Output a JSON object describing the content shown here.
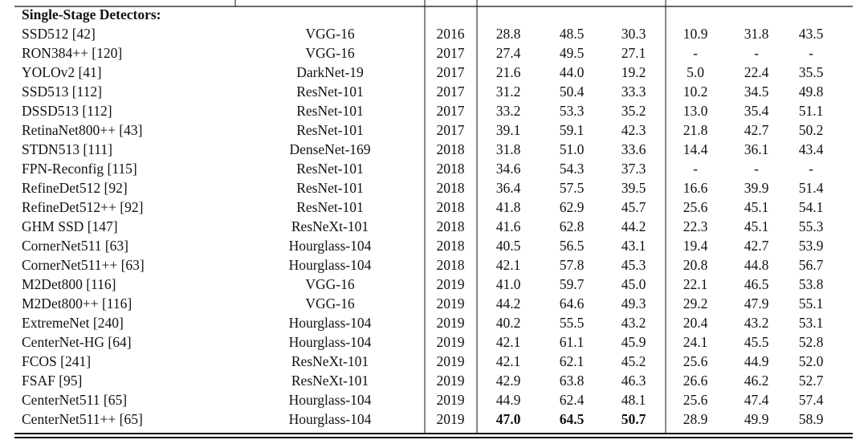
{
  "table": {
    "section": "Single-Stage Detectors:",
    "rows": [
      [
        "SSD512 [42]",
        "VGG-16",
        "2016",
        "28.8",
        "48.5",
        "30.3",
        "10.9",
        "31.8",
        "43.5"
      ],
      [
        "RON384++ [120]",
        "VGG-16",
        "2017",
        "27.4",
        "49.5",
        "27.1",
        "-",
        "-",
        "-"
      ],
      [
        "YOLOv2 [41]",
        "DarkNet-19",
        "2017",
        "21.6",
        "44.0",
        "19.2",
        "5.0",
        "22.4",
        "35.5"
      ],
      [
        "SSD513 [112]",
        "ResNet-101",
        "2017",
        "31.2",
        "50.4",
        "33.3",
        "10.2",
        "34.5",
        "49.8"
      ],
      [
        "DSSD513 [112]",
        "ResNet-101",
        "2017",
        "33.2",
        "53.3",
        "35.2",
        "13.0",
        "35.4",
        "51.1"
      ],
      [
        "RetinaNet800++ [43]",
        "ResNet-101",
        "2017",
        "39.1",
        "59.1",
        "42.3",
        "21.8",
        "42.7",
        "50.2"
      ],
      [
        "STDN513 [111]",
        "DenseNet-169",
        "2018",
        "31.8",
        "51.0",
        "33.6",
        "14.4",
        "36.1",
        "43.4"
      ],
      [
        "FPN-Reconfig [115]",
        "ResNet-101",
        "2018",
        "34.6",
        "54.3",
        "37.3",
        "-",
        "-",
        "-"
      ],
      [
        "RefineDet512 [92]",
        "ResNet-101",
        "2018",
        "36.4",
        "57.5",
        "39.5",
        "16.6",
        "39.9",
        "51.4"
      ],
      [
        "RefineDet512++ [92]",
        "ResNet-101",
        "2018",
        "41.8",
        "62.9",
        "45.7",
        "25.6",
        "45.1",
        "54.1"
      ],
      [
        "GHM SSD [147]",
        "ResNeXt-101",
        "2018",
        "41.6",
        "62.8",
        "44.2",
        "22.3",
        "45.1",
        "55.3"
      ],
      [
        "CornerNet511 [63]",
        "Hourglass-104",
        "2018",
        "40.5",
        "56.5",
        "43.1",
        "19.4",
        "42.7",
        "53.9"
      ],
      [
        "CornerNet511++ [63]",
        "Hourglass-104",
        "2018",
        "42.1",
        "57.8",
        "45.3",
        "20.8",
        "44.8",
        "56.7"
      ],
      [
        "M2Det800 [116]",
        "VGG-16",
        "2019",
        "41.0",
        "59.7",
        "45.0",
        "22.1",
        "46.5",
        "53.8"
      ],
      [
        "M2Det800++ [116]",
        "VGG-16",
        "2019",
        "44.2",
        "64.6",
        "49.3",
        "29.2",
        "47.9",
        "55.1"
      ],
      [
        "ExtremeNet [240]",
        "Hourglass-104",
        "2019",
        "40.2",
        "55.5",
        "43.2",
        "20.4",
        "43.2",
        "53.1"
      ],
      [
        "CenterNet-HG [64]",
        "Hourglass-104",
        "2019",
        "42.1",
        "61.1",
        "45.9",
        "24.1",
        "45.5",
        "52.8"
      ],
      [
        "FCOS [241]",
        "ResNeXt-101",
        "2019",
        "42.1",
        "62.1",
        "45.2",
        "25.6",
        "44.9",
        "52.0"
      ],
      [
        "FSAF [95]",
        "ResNeXt-101",
        "2019",
        "42.9",
        "63.8",
        "46.3",
        "26.6",
        "46.2",
        "52.7"
      ],
      [
        "CenterNet511 [65]",
        "Hourglass-104",
        "2019",
        "44.9",
        "62.4",
        "48.1",
        "25.6",
        "47.4",
        "57.4"
      ],
      [
        "CenterNet511++ [65]",
        "Hourglass-104",
        "2019",
        "47.0",
        "64.5",
        "50.7",
        "28.9",
        "49.9",
        "58.9"
      ]
    ],
    "bold_cells": [
      [
        20,
        3
      ],
      [
        20,
        4
      ],
      [
        20,
        5
      ]
    ]
  }
}
